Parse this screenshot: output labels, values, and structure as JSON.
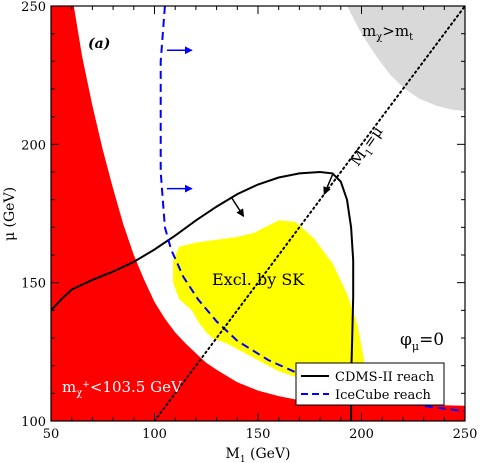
{
  "chart_data": {
    "type": "line",
    "title": "",
    "panel_label": "(a)",
    "xlabel": {
      "main": "M",
      "sub": "1",
      "unit": " (GeV)"
    },
    "ylabel": {
      "main": "μ",
      "unit": " (GeV)"
    },
    "xlim": [
      50,
      250
    ],
    "ylim": [
      100,
      250
    ],
    "xticks": [
      50,
      100,
      150,
      200,
      250
    ],
    "yticks": [
      100,
      150,
      200,
      250
    ],
    "grid": false,
    "legend_placement": "bottom-right",
    "colors": {
      "excluded_chargino": "#ff0000",
      "excluded_sk": "#ffff00",
      "gray_region": "#d9d9d9",
      "cdms": "#000000",
      "icecube": "#0000ff"
    },
    "regions": [
      {
        "name": "red-chargino-excluded",
        "color": "#ff0000",
        "label": {
          "pre": "m",
          "sub": "χ",
          "sup": "+",
          "post": "<103.5 GeV"
        },
        "polygon": [
          [
            50,
            100
          ],
          [
            50,
            250
          ],
          [
            61,
            250
          ],
          [
            65,
            232
          ],
          [
            70,
            214
          ],
          [
            75,
            198
          ],
          [
            80,
            184
          ],
          [
            85,
            171
          ],
          [
            90,
            160
          ],
          [
            95,
            151
          ],
          [
            100,
            143
          ],
          [
            105,
            137
          ],
          [
            110,
            132
          ],
          [
            115,
            128
          ],
          [
            120,
            124.5
          ],
          [
            125,
            121
          ],
          [
            130,
            118.5
          ],
          [
            140,
            114
          ],
          [
            150,
            111
          ],
          [
            160,
            109
          ],
          [
            170,
            107.5
          ],
          [
            190,
            106.5
          ],
          [
            220,
            106
          ],
          [
            250,
            105.5
          ],
          [
            250,
            100
          ]
        ]
      },
      {
        "name": "sk-excluded",
        "color": "#ffff00",
        "label": "Excl. by SK",
        "polygon": [
          [
            148,
            168
          ],
          [
            160,
            172.5
          ],
          [
            168,
            172
          ],
          [
            177,
            166
          ],
          [
            186,
            157
          ],
          [
            193,
            146
          ],
          [
            198,
            135
          ],
          [
            201,
            123
          ],
          [
            203,
            114
          ],
          [
            200,
            110
          ],
          [
            180,
            113
          ],
          [
            160,
            118
          ],
          [
            145,
            124
          ],
          [
            135,
            128
          ],
          [
            128,
            130
          ],
          [
            125,
            132
          ],
          [
            121,
            136
          ],
          [
            118,
            140
          ],
          [
            112,
            144
          ],
          [
            109,
            150
          ],
          [
            109,
            158
          ],
          [
            112,
            163
          ],
          [
            120,
            164.5
          ],
          [
            130,
            165.5
          ],
          [
            140,
            166.5
          ]
        ]
      },
      {
        "name": "gray-m-chi-gt-m-t",
        "color": "#d9d9d9",
        "label": {
          "pre": "m",
          "sub": "χ",
          "mid": ">m",
          "sub2": "t"
        },
        "polygon": [
          [
            193,
            250
          ],
          [
            200,
            240
          ],
          [
            207,
            232
          ],
          [
            214,
            225
          ],
          [
            221,
            220
          ],
          [
            228,
            216.5
          ],
          [
            236,
            214
          ],
          [
            244,
            212.5
          ],
          [
            250,
            212
          ],
          [
            250,
            250
          ]
        ]
      }
    ],
    "series": [
      {
        "name": "CDMS-II reach",
        "color": "#000000",
        "style": "solid",
        "points": [
          [
            50,
            140
          ],
          [
            55,
            144
          ],
          [
            60,
            147.5
          ],
          [
            70,
            151
          ],
          [
            80,
            154
          ],
          [
            90,
            157.5
          ],
          [
            100,
            162
          ],
          [
            110,
            167
          ],
          [
            120,
            172.5
          ],
          [
            130,
            177.5
          ],
          [
            140,
            182
          ],
          [
            150,
            185.5
          ],
          [
            160,
            188
          ],
          [
            170,
            189.5
          ],
          [
            180,
            190
          ],
          [
            186,
            189.5
          ],
          [
            190,
            186.5
          ],
          [
            193,
            180
          ],
          [
            195,
            170
          ],
          [
            196,
            158
          ],
          [
            196,
            145
          ],
          [
            195.5,
            130
          ],
          [
            195,
            115
          ],
          [
            195,
            100
          ]
        ]
      },
      {
        "name": "IceCube reach",
        "color": "#0000ff",
        "style": "dashed",
        "points": [
          [
            105,
            250
          ],
          [
            104,
            240
          ],
          [
            103,
            230
          ],
          [
            103,
            220
          ],
          [
            103,
            210
          ],
          [
            103,
            200
          ],
          [
            103,
            190
          ],
          [
            104,
            180
          ],
          [
            105,
            170
          ],
          [
            108,
            162
          ],
          [
            114,
            152
          ],
          [
            121,
            144
          ],
          [
            130,
            136
          ],
          [
            140,
            129
          ],
          [
            155,
            122
          ],
          [
            170,
            117
          ],
          [
            185,
            113
          ],
          [
            200,
            110
          ],
          [
            215,
            107.5
          ],
          [
            230,
            105.5
          ],
          [
            250,
            103.5
          ]
        ]
      },
      {
        "name": "M1=mu",
        "color": "#000000",
        "style": "dotted",
        "points": [
          [
            100,
            100
          ],
          [
            250,
            250
          ]
        ],
        "label": {
          "pre": "M",
          "sub": "1",
          "post": "=μ"
        }
      }
    ],
    "arrows": [
      {
        "name": "icecube-arrow-1",
        "color": "#0000ff",
        "from": [
          106,
          234
        ],
        "to": [
          118,
          234
        ]
      },
      {
        "name": "icecube-arrow-2",
        "color": "#0000ff",
        "from": [
          106,
          184
        ],
        "to": [
          118,
          184
        ]
      },
      {
        "name": "cdms-arrow-1",
        "color": "#000000",
        "from": [
          186,
          189
        ],
        "to": [
          182,
          182
        ]
      },
      {
        "name": "cdms-arrow-2",
        "color": "#000000",
        "from": [
          137,
          181
        ],
        "to": [
          143,
          174
        ]
      }
    ],
    "annotations": {
      "phi": {
        "pre": "φ",
        "sub": "μ",
        "post": "=0"
      }
    },
    "legend": [
      {
        "label": "CDMS-II reach",
        "color": "#000000",
        "style": "solid"
      },
      {
        "label": "IceCube reach",
        "color": "#0000ff",
        "style": "dashed"
      }
    ]
  }
}
